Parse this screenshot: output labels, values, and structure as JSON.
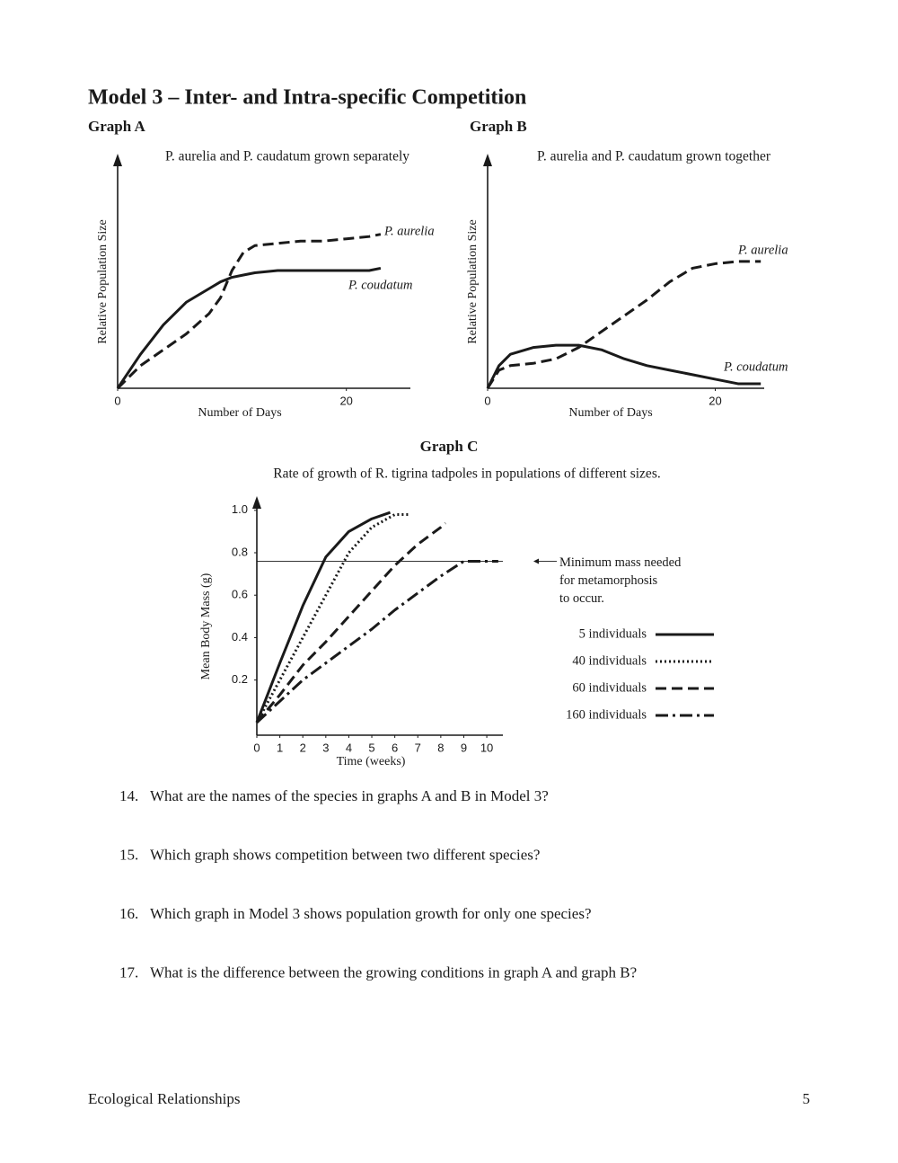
{
  "title": "Model 3 – Inter- and Intra-specific Competition",
  "chart_data": [
    {
      "type": "line",
      "heading": "Graph A",
      "subtitle": "P. aurelia and P. caudatum grown separately",
      "xlabel": "Number of Days",
      "ylabel": "Relative Population Size",
      "xlim": [
        0,
        25.6
      ],
      "xticks": [
        0,
        20
      ],
      "ylim": [
        0,
        1.02
      ],
      "x": [
        0,
        2,
        4,
        6,
        8,
        9,
        10,
        11,
        12,
        14,
        16,
        18,
        20,
        22,
        23
      ],
      "series": [
        {
          "name": "P. aurelia",
          "color": "#1a1a1a",
          "style": "dashed",
          "values": [
            0,
            0.1,
            0.17,
            0.24,
            0.33,
            0.4,
            0.52,
            0.6,
            0.63,
            0.64,
            0.65,
            0.65,
            0.66,
            0.67,
            0.68
          ]
        },
        {
          "name": "P. coudatum",
          "color": "#1a1a1a",
          "style": "solid",
          "values": [
            0,
            0.15,
            0.28,
            0.38,
            0.44,
            0.47,
            0.49,
            0.5,
            0.51,
            0.52,
            0.52,
            0.52,
            0.52,
            0.52,
            0.53
          ]
        }
      ]
    },
    {
      "type": "line",
      "heading": "Graph B",
      "subtitle": "P. aurelia and P. caudatum grown together",
      "xlabel": "Number of Days",
      "ylabel": "Relative Population Size",
      "xlim": [
        0,
        24.3
      ],
      "xticks": [
        0,
        20
      ],
      "ylim": [
        0,
        1.02
      ],
      "x": [
        0,
        1,
        2,
        4,
        6,
        8,
        10,
        12,
        14,
        16,
        18,
        20,
        22,
        24
      ],
      "series": [
        {
          "name": "P. aurelia",
          "color": "#1a1a1a",
          "style": "dashed",
          "values": [
            0,
            0.08,
            0.1,
            0.11,
            0.13,
            0.18,
            0.25,
            0.32,
            0.39,
            0.47,
            0.53,
            0.55,
            0.56,
            0.56
          ]
        },
        {
          "name": "P. coudatum",
          "color": "#1a1a1a",
          "style": "solid",
          "values": [
            0,
            0.1,
            0.15,
            0.18,
            0.19,
            0.19,
            0.17,
            0.13,
            0.1,
            0.08,
            0.06,
            0.04,
            0.02,
            0.02
          ]
        }
      ]
    },
    {
      "type": "line",
      "heading": "Graph C",
      "subtitle": "Rate of growth of R. tigrina tadpoles in populations of different sizes.",
      "xlabel": "Time (weeks)",
      "ylabel": "Mean Body Mass (g)",
      "xlim": [
        0,
        10.7
      ],
      "xticks": [
        0,
        1,
        2,
        3,
        4,
        5,
        6,
        7,
        8,
        9,
        10
      ],
      "ylim": [
        -0.06,
        1.05
      ],
      "yticks": [
        0.2,
        0.4,
        0.6,
        0.8,
        {
          "value": 1,
          "label": "1.0"
        }
      ],
      "hline": 0.76,
      "annotation": [
        "Minimum mass needed",
        "for metamorphosis",
        "to occur."
      ],
      "series": [
        {
          "name": "5 individuals",
          "color": "#1a1a1a",
          "style": "solid",
          "x": [
            0,
            1,
            2,
            3,
            4,
            5,
            5.8
          ],
          "values": [
            0,
            0.28,
            0.55,
            0.78,
            0.9,
            0.96,
            0.99
          ]
        },
        {
          "name": "40 individuals",
          "color": "#1a1a1a",
          "style": "dotted",
          "x": [
            0,
            1,
            2,
            3,
            4,
            5,
            6,
            6.6
          ],
          "values": [
            0,
            0.2,
            0.4,
            0.6,
            0.8,
            0.92,
            0.98,
            0.98
          ]
        },
        {
          "name": "60 individuals",
          "color": "#1a1a1a",
          "style": "dashed",
          "x": [
            0,
            1,
            2,
            3,
            4,
            5,
            6,
            7,
            8,
            8.2
          ],
          "values": [
            0,
            0.13,
            0.27,
            0.38,
            0.5,
            0.62,
            0.74,
            0.84,
            0.92,
            0.94
          ]
        },
        {
          "name": "160 individuals",
          "color": "#1a1a1a",
          "style": "dashdot",
          "x": [
            0,
            1,
            2,
            3,
            4,
            5,
            6,
            7,
            8,
            9,
            9.5,
            10.5
          ],
          "values": [
            0,
            0.1,
            0.2,
            0.28,
            0.36,
            0.44,
            0.53,
            0.61,
            0.69,
            0.76,
            0.76,
            0.76
          ]
        }
      ]
    }
  ],
  "questions": [
    {
      "number": "14.",
      "text": "What are the names of the species in graphs A and B in Model 3?"
    },
    {
      "number": "15.",
      "text": "Which graph shows competition between two different species?"
    },
    {
      "number": "16.",
      "text": "Which graph in Model 3 shows population growth for only one species?"
    },
    {
      "number": "17.",
      "text": "What is the difference between the growing conditions in graph A and graph B?"
    }
  ],
  "footer": {
    "left": "Ecological Relationships",
    "page": "5"
  }
}
